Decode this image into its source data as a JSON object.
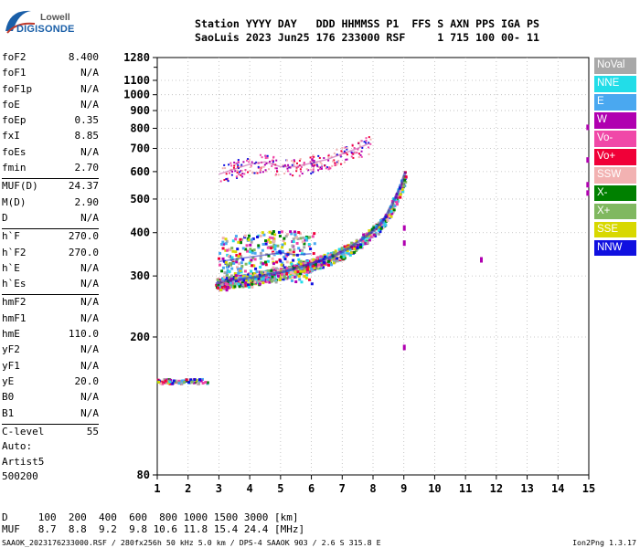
{
  "logo": {
    "line1": "Lowell",
    "line2": "DIGISONDE"
  },
  "header": {
    "row1": "Station YYYY DAY   DDD HHMMSS P1  FFS S AXN PPS IGA PS",
    "row2": "SaoLuis 2023 Jun25 176 233000 RSF     1 715 100 00- 11"
  },
  "param_groups": [
    [
      [
        "foF2",
        "8.400"
      ],
      [
        "foF1",
        "N/A"
      ],
      [
        "foF1p",
        "N/A"
      ],
      [
        "foE",
        "N/A"
      ],
      [
        "foEp",
        "0.35"
      ],
      [
        "fxI",
        "8.85"
      ],
      [
        "foEs",
        "N/A"
      ],
      [
        "fmin",
        "2.70"
      ]
    ],
    [
      [
        "MUF(D)",
        "24.37"
      ],
      [
        "M(D)",
        "2.90"
      ],
      [
        "D",
        "N/A"
      ]
    ],
    [
      [
        "h`F",
        "270.0"
      ],
      [
        "h`F2",
        "270.0"
      ],
      [
        "h`E",
        "N/A"
      ],
      [
        "h`Es",
        "N/A"
      ]
    ],
    [
      [
        "hmF2",
        "N/A"
      ],
      [
        "hmF1",
        "N/A"
      ],
      [
        "hmE",
        "110.0"
      ],
      [
        "yF2",
        "N/A"
      ],
      [
        "yF1",
        "N/A"
      ],
      [
        "yE",
        "20.0"
      ],
      [
        "B0",
        "N/A"
      ],
      [
        "B1",
        "N/A"
      ]
    ],
    [
      [
        "C-level",
        "55"
      ]
    ]
  ],
  "autoscaling": {
    "line1": "Auto:",
    "line2": "Artist5",
    "line3": "500200"
  },
  "muf_table": {
    "d_row": "D     100  200  400  600  800 1000 1500 3000 [km]",
    "muf_row": "MUF   8.7  8.8  9.2  9.8 10.6 11.8 15.4 24.4 [MHz]"
  },
  "footer": {
    "text": "SAAOK_2023176233000.RSF / 280fx256h 50 kHz 5.0 km / DPS-4 SAAOK 903 / 2.6 S 315.8 E",
    "version": "Ion2Png 1.3.17"
  },
  "legend": [
    {
      "label": "NoVal",
      "color": "#a8a8a8"
    },
    {
      "label": "NNE",
      "color": "#22dde8"
    },
    {
      "label": "E",
      "color": "#4aa8f0"
    },
    {
      "label": "W",
      "color": "#b000b0"
    },
    {
      "label": "Vo-",
      "color": "#f048a8"
    },
    {
      "label": "Vo+",
      "color": "#f00038"
    },
    {
      "label": "SSW",
      "color": "#f2b2b2"
    },
    {
      "label": "X-",
      "color": "#008000"
    },
    {
      "label": "X+",
      "color": "#80b860"
    },
    {
      "label": "SSE",
      "color": "#d8d800"
    },
    {
      "label": "NNW",
      "color": "#1010e0"
    }
  ],
  "chart_data": {
    "type": "scatter",
    "xlabel": "",
    "ylabel": "",
    "xlim": [
      1,
      15
    ],
    "ylim": [
      80,
      1280
    ],
    "x_ticks": [
      1,
      2,
      3,
      4,
      5,
      6,
      7,
      8,
      9,
      10,
      11,
      12,
      13,
      14,
      15
    ],
    "y_ticks": [
      1280,
      1100,
      1000,
      900,
      800,
      700,
      600,
      500,
      400,
      300,
      200,
      80
    ],
    "y_minor_ticks": [
      1200
    ],
    "grid": true,
    "grid_style": "dotted",
    "y_scale": "log",
    "series": [
      {
        "group": "F-trace",
        "points": [
          [
            2.9,
            285
          ],
          [
            3.2,
            290
          ],
          [
            3.6,
            292
          ],
          [
            4.0,
            296
          ],
          [
            4.4,
            300
          ],
          [
            4.8,
            305
          ],
          [
            5.2,
            310
          ],
          [
            5.6,
            318
          ],
          [
            6.0,
            325
          ],
          [
            6.4,
            335
          ],
          [
            6.8,
            345
          ],
          [
            7.2,
            360
          ],
          [
            7.6,
            380
          ],
          [
            8.0,
            405
          ],
          [
            8.3,
            430
          ],
          [
            8.5,
            460
          ],
          [
            8.7,
            500
          ],
          [
            8.9,
            545
          ],
          [
            9.05,
            600
          ]
        ]
      },
      {
        "group": "F-trace upper",
        "points": [
          [
            3.0,
            330
          ],
          [
            3.5,
            335
          ],
          [
            4.0,
            340
          ],
          [
            4.5,
            345
          ],
          [
            5.0,
            350
          ],
          [
            5.5,
            345
          ],
          [
            6.0,
            348
          ]
        ]
      },
      {
        "group": "spread-F",
        "points": [
          [
            3.0,
            590
          ],
          [
            3.5,
            610
          ],
          [
            4.0,
            630
          ],
          [
            4.5,
            640
          ],
          [
            5.0,
            620
          ],
          [
            5.5,
            620
          ],
          [
            6.0,
            635
          ],
          [
            6.5,
            650
          ],
          [
            7.0,
            675
          ],
          [
            7.5,
            700
          ],
          [
            7.9,
            725
          ]
        ]
      },
      {
        "group": "low echo",
        "points": [
          [
            1.0,
            150
          ],
          [
            1.4,
            150
          ],
          [
            1.8,
            150
          ],
          [
            2.2,
            150
          ],
          [
            2.6,
            150
          ]
        ]
      }
    ]
  }
}
